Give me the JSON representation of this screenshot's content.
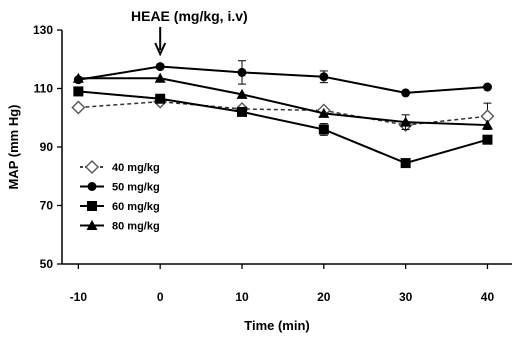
{
  "chart_data": {
    "type": "line",
    "xlabel": "Time (min)",
    "ylabel": "MAP (mm Hg)",
    "x": [
      -10,
      0,
      10,
      20,
      30,
      40
    ],
    "x_ticks": [
      "-10",
      "0",
      "10",
      "20",
      "30",
      "40"
    ],
    "y_ticks": [
      "50",
      "70",
      "90",
      "110",
      "130"
    ],
    "xlim": [
      -12,
      43
    ],
    "ylim": [
      50,
      130
    ],
    "grid": false,
    "legend_position": "left-middle",
    "annotation": {
      "text": "HEAE (mg/kg, i.v)",
      "x": 0
    },
    "series": [
      {
        "name": "40 mg/kg",
        "marker": "open-diamond",
        "line": "dashed",
        "values": [
          103.5,
          105.5,
          103,
          102.5,
          97.5,
          100.5
        ],
        "errors": [
          0,
          0,
          0,
          0,
          0,
          4.5
        ]
      },
      {
        "name": "50 mg/kg",
        "marker": "filled-circle",
        "line": "solid",
        "values": [
          113,
          117.5,
          115.5,
          114,
          108.5,
          110.5
        ],
        "errors": [
          0,
          0,
          4,
          2,
          0,
          0
        ]
      },
      {
        "name": "60 mg/kg",
        "marker": "filled-square",
        "line": "solid",
        "values": [
          109,
          106.5,
          102,
          96,
          84.5,
          92.5
        ],
        "errors": [
          0,
          0,
          0,
          2,
          0,
          0
        ]
      },
      {
        "name": "80 mg/kg",
        "marker": "filled-triangle",
        "line": "solid",
        "values": [
          113.5,
          113.5,
          108,
          101.5,
          98.5,
          97.5
        ],
        "errors": [
          0,
          0,
          0,
          0,
          2.5,
          0
        ]
      }
    ]
  }
}
